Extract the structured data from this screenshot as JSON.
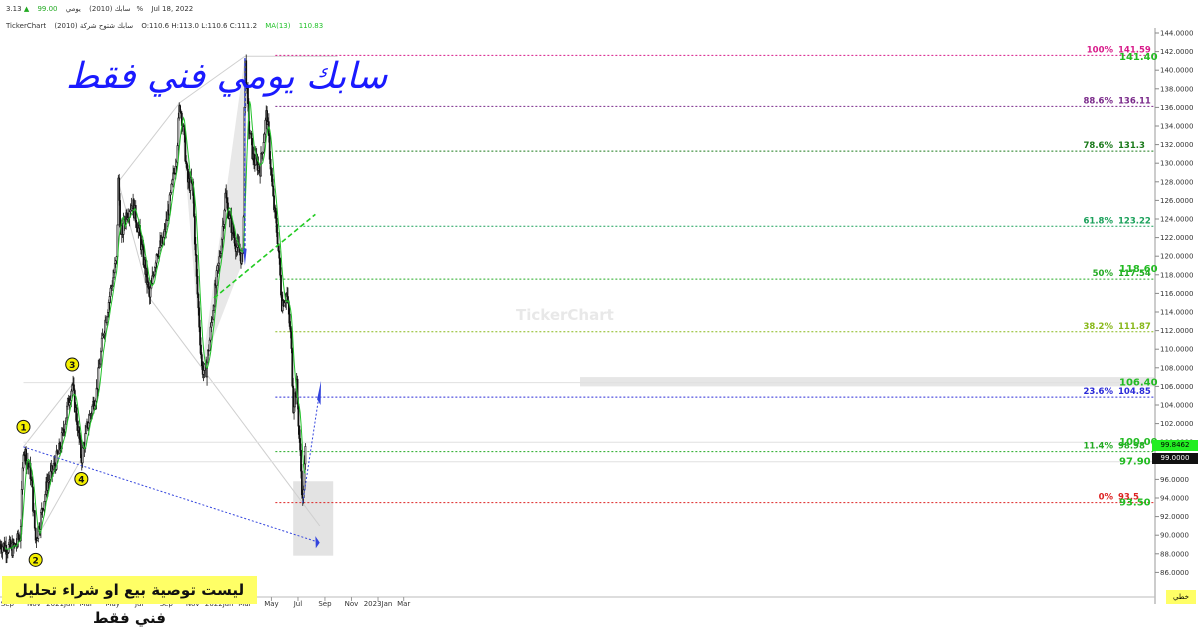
{
  "header": {
    "row1": {
      "symbol": "سابك (2010)",
      "period": "يومي",
      "price": "99.00",
      "change": "3.13%",
      "date": "Jul 18, 2022"
    },
    "row2": {
      "brand": "TickerChart",
      "name": "سابك شتوح شركة (2010)",
      "ohlc": "O:110.6 H:113.0 L:110.6 C:111.2",
      "ma_label": "MA(13)",
      "ma_value": "110.83"
    }
  },
  "overlay": {
    "title": "سابك يومي فني فقط",
    "disclaimer": "ليست توصية بيع او شراء تحليل فني فقط",
    "watermark": "TickerChart",
    "corner": "خطي"
  },
  "price_tags": {
    "last": "99.0000",
    "ma": "99.8462"
  },
  "colors": {
    "up": "#111111",
    "down": "#111111",
    "ma": "#22c22a",
    "trend": "#3344dd",
    "green_dash": "#22cc22",
    "pattern_fill": "#d8d8d8"
  },
  "chart_data": {
    "type": "candlestick",
    "title": "",
    "xlabel": "",
    "ylabel": "",
    "ylim": [
      85,
      145
    ],
    "x_ticks": [
      "Sep",
      "Nov",
      "2021Jan",
      "Mar",
      "May",
      "Jul",
      "Sep",
      "Nov",
      "2022Jan",
      "Mar",
      "May",
      "Jul",
      "Sep",
      "Nov",
      "2023Jan",
      "Mar"
    ],
    "y_ticks": [
      "144.0000",
      "142.0000",
      "140.0000",
      "138.0000",
      "136.0000",
      "134.0000",
      "132.0000",
      "130.0000",
      "128.0000",
      "126.0000",
      "124.0000",
      "122.0000",
      "120.0000",
      "118.0000",
      "116.0000",
      "114.0000",
      "112.0000",
      "110.0000",
      "108.0000",
      "106.0000",
      "104.0000",
      "102.0000",
      "100.0000",
      "98.0000",
      "96.0000",
      "94.0000",
      "92.0000",
      "90.0000",
      "88.0000",
      "86.0000"
    ],
    "price_path": [
      [
        "2020-08-15",
        89.0
      ],
      [
        "2020-09-15",
        88.5
      ],
      [
        "2020-10-01",
        90.0
      ],
      [
        "2020-10-08",
        99.5
      ],
      [
        "2020-10-25",
        96.5
      ],
      [
        "2020-11-05",
        89.5
      ],
      [
        "2020-11-15",
        91.5
      ],
      [
        "2020-12-01",
        95.5
      ],
      [
        "2020-12-15",
        97.0
      ],
      [
        "2021-01-01",
        99.5
      ],
      [
        "2021-01-20",
        104.5
      ],
      [
        "2021-01-28",
        106.2
      ],
      [
        "2021-02-10",
        101.5
      ],
      [
        "2021-02-18",
        98.2
      ],
      [
        "2021-03-05",
        102.0
      ],
      [
        "2021-03-25",
        105.5
      ],
      [
        "2021-04-10",
        112.0
      ],
      [
        "2021-04-25",
        116.0
      ],
      [
        "2021-05-05",
        118.5
      ],
      [
        "2021-05-10",
        119.5
      ],
      [
        "2021-05-14",
        128.0
      ],
      [
        "2021-05-20",
        122.0
      ],
      [
        "2021-06-01",
        124.5
      ],
      [
        "2021-06-15",
        125.8
      ],
      [
        "2021-07-01",
        122.5
      ],
      [
        "2021-07-15",
        118.5
      ],
      [
        "2021-07-25",
        115.5
      ],
      [
        "2021-08-10",
        120.5
      ],
      [
        "2021-08-25",
        121.5
      ],
      [
        "2021-09-10",
        126.0
      ],
      [
        "2021-09-25",
        131.0
      ],
      [
        "2021-10-02",
        136.5
      ],
      [
        "2021-10-10",
        134.0
      ],
      [
        "2021-10-20",
        128.0
      ],
      [
        "2021-11-01",
        127.5
      ],
      [
        "2021-11-10",
        117.5
      ],
      [
        "2021-11-22",
        108.0
      ],
      [
        "2021-12-01",
        107.5
      ],
      [
        "2021-12-10",
        111.0
      ],
      [
        "2021-12-20",
        115.5
      ],
      [
        "2022-01-05",
        121.0
      ],
      [
        "2022-01-15",
        126.5
      ],
      [
        "2022-01-25",
        124.0
      ],
      [
        "2022-02-10",
        121.0
      ],
      [
        "2022-02-25",
        119.5
      ],
      [
        "2022-03-01",
        141.5
      ],
      [
        "2022-03-10",
        134.0
      ],
      [
        "2022-03-20",
        130.5
      ],
      [
        "2022-04-05",
        129.5
      ],
      [
        "2022-04-20",
        135.5
      ],
      [
        "2022-05-05",
        126.0
      ],
      [
        "2022-05-15",
        122.0
      ],
      [
        "2022-05-25",
        115.0
      ],
      [
        "2022-06-05",
        116.0
      ],
      [
        "2022-06-15",
        111.0
      ],
      [
        "2022-06-20",
        104.0
      ],
      [
        "2022-06-28",
        106.0
      ],
      [
        "2022-07-05",
        99.5
      ],
      [
        "2022-07-12",
        93.5
      ],
      [
        "2022-07-18",
        99.0
      ]
    ],
    "ma_period": 13,
    "fibonacci": [
      {
        "ratio": "100%",
        "value": "141.59",
        "color": "#d81b8a"
      },
      {
        "ratio": "88.6%",
        "value": "136.11",
        "color": "#7a2a8a"
      },
      {
        "ratio": "78.6%",
        "value": "131.3",
        "color": "#1a7a1a"
      },
      {
        "ratio": "61.8%",
        "value": "123.22",
        "color": "#1aa05a"
      },
      {
        "ratio": "50%",
        "value": "117.54",
        "color": "#22aa22"
      },
      {
        "ratio": "38.2%",
        "value": "111.87",
        "color": "#88b81a"
      },
      {
        "ratio": "23.6%",
        "value": "104.85",
        "color": "#2a2ad8"
      },
      {
        "ratio": "11.4%",
        "value": "98.98",
        "color": "#22aa22"
      },
      {
        "ratio": "0%",
        "value": "93.5",
        "color": "#dd2222"
      }
    ],
    "green_levels": [
      {
        "label": "141.40",
        "value": 141.4
      },
      {
        "label": "118.60",
        "value": 118.6
      },
      {
        "label": "106.40",
        "value": 106.4
      },
      {
        "label": "100.00",
        "value": 100.0
      },
      {
        "label": "97.90",
        "value": 97.9
      },
      {
        "label": "93.50",
        "value": 93.5
      }
    ],
    "pattern_points": [
      {
        "label": "1",
        "date": "2020-10-08",
        "price": 99.5
      },
      {
        "label": "2",
        "date": "2020-11-05",
        "price": 89.5
      },
      {
        "label": "3",
        "date": "2021-01-28",
        "price": 106.2
      },
      {
        "label": "4",
        "date": "2021-02-18",
        "price": 98.2
      }
    ]
  }
}
